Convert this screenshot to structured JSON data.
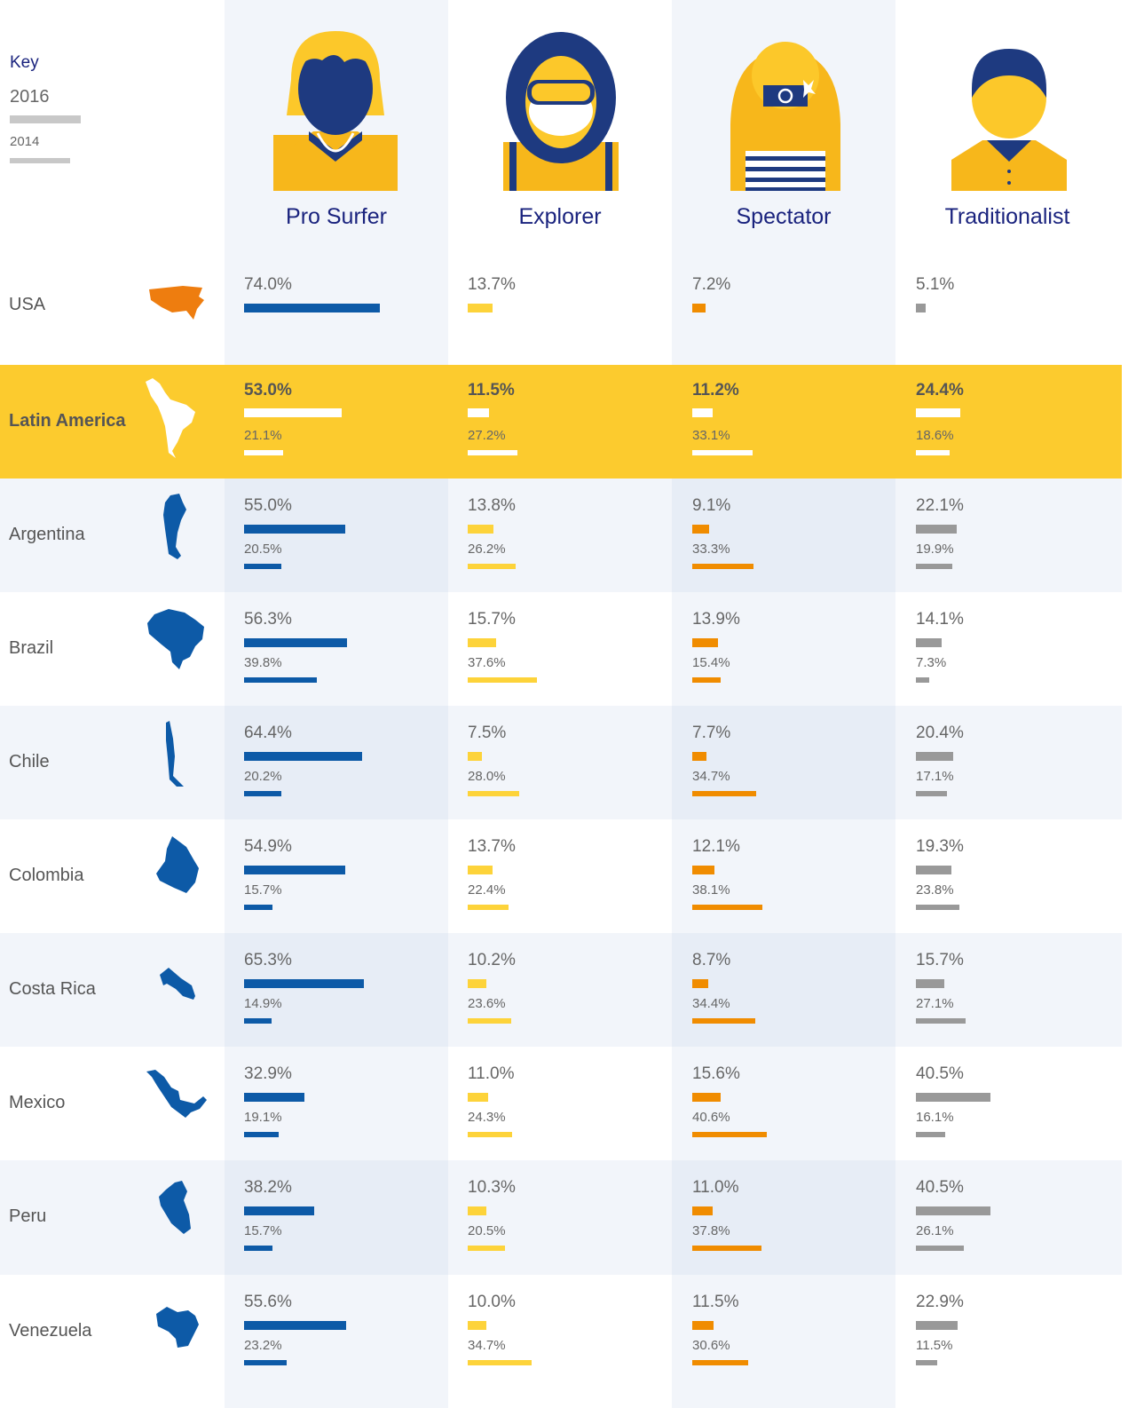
{
  "key": {
    "title": "Key",
    "year_primary": "2016",
    "year_secondary": "2014"
  },
  "personas": [
    "Pro Surfer",
    "Explorer",
    "Spectator",
    "Traditionalist"
  ],
  "colors": {
    "pro_surfer": "#0d5aa7",
    "explorer": "#fdd33a",
    "spectator": "#f08c00",
    "traditionalist": "#999999",
    "highlight_band": "#fccb2e",
    "band_shade": "#f2f5fa",
    "column_shade": "#e7edf6",
    "map_blue": "#0d5aa7",
    "map_orange": "#ee7d0f",
    "title_navy": "#1a237e"
  },
  "chart_data": {
    "type": "bar",
    "orientation": "horizontal",
    "title": "",
    "categories": [
      "Pro Surfer",
      "Explorer",
      "Spectator",
      "Traditionalist"
    ],
    "legend": [
      "2016",
      "2014"
    ],
    "unit": "%",
    "rows": [
      {
        "region": "USA",
        "values_2016": [
          74.0,
          13.7,
          7.2,
          5.1
        ],
        "values_2014": null
      },
      {
        "region": "Latin America",
        "values_2016": [
          53.0,
          11.5,
          11.2,
          24.4
        ],
        "values_2014": [
          21.1,
          27.2,
          33.1,
          18.6
        ]
      },
      {
        "region": "Argentina",
        "values_2016": [
          55.0,
          13.8,
          9.1,
          22.1
        ],
        "values_2014": [
          20.5,
          26.2,
          33.3,
          19.9
        ]
      },
      {
        "region": "Brazil",
        "values_2016": [
          56.3,
          15.7,
          13.9,
          14.1
        ],
        "values_2014": [
          39.8,
          37.6,
          15.4,
          7.3
        ]
      },
      {
        "region": "Chile",
        "values_2016": [
          64.4,
          7.5,
          7.7,
          20.4
        ],
        "values_2014": [
          20.2,
          28.0,
          34.7,
          17.1
        ]
      },
      {
        "region": "Colombia",
        "values_2016": [
          54.9,
          13.7,
          12.1,
          19.3
        ],
        "values_2014": [
          15.7,
          22.4,
          38.1,
          23.8
        ]
      },
      {
        "region": "Costa Rica",
        "values_2016": [
          65.3,
          10.2,
          8.7,
          15.7
        ],
        "values_2014": [
          14.9,
          23.6,
          34.4,
          27.1
        ]
      },
      {
        "region": "Mexico",
        "values_2016": [
          32.9,
          11.0,
          15.6,
          40.5
        ],
        "values_2014": [
          19.1,
          24.3,
          40.6,
          16.1
        ]
      },
      {
        "region": "Peru",
        "values_2016": [
          38.2,
          10.3,
          11.0,
          40.5
        ],
        "values_2014": [
          15.7,
          20.5,
          37.8,
          26.1
        ]
      },
      {
        "region": "Venezuela",
        "values_2016": [
          55.6,
          10.0,
          11.5,
          22.9
        ],
        "values_2014": [
          23.2,
          34.7,
          30.6,
          11.5
        ]
      }
    ]
  }
}
